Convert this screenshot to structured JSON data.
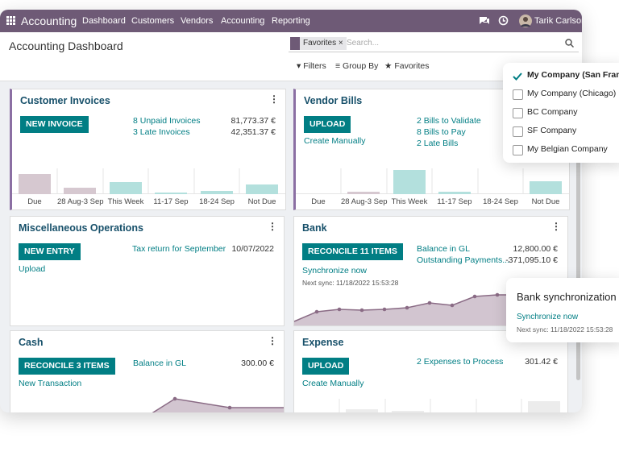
{
  "navbar": {
    "app": "Accounting",
    "menu": [
      "Dashboard",
      "Customers",
      "Vendors",
      "Accounting",
      "Reporting"
    ],
    "user": "Tarik Carlson"
  },
  "control_panel": {
    "title": "Accounting Dashboard",
    "facet": "Favorites",
    "search_placeholder": "Search...",
    "filters": "Filters",
    "group_by": "Group By",
    "favorites": "Favorites"
  },
  "cards": {
    "customer_invoices": {
      "title": "Customer Invoices",
      "button": "NEW INVOICE",
      "rows": [
        {
          "label": "8 Unpaid Invoices",
          "amount": "81,773.37 €"
        },
        {
          "label": "3 Late Invoices",
          "amount": "42,351.37 €"
        }
      ],
      "chart_labels": [
        "Due",
        "28 Aug-3 Sep",
        "This Week",
        "11-17 Sep",
        "18-24 Sep",
        "Not Due"
      ]
    },
    "vendor_bills": {
      "title": "Vendor Bills",
      "button": "UPLOAD",
      "secondary": "Create Manually",
      "rows": [
        "2 Bills to Validate",
        "8 Bills to Pay",
        "2 Late Bills"
      ],
      "chart_labels": [
        "Due",
        "28 Aug-3 Sep",
        "This Week",
        "11-17 Sep",
        "18-24 Sep",
        "Not Due"
      ]
    },
    "miscellaneous": {
      "title": "Miscellaneous Operations",
      "button": "NEW ENTRY",
      "secondary": "Upload",
      "item": "Tax return for September",
      "date": "10/07/2022"
    },
    "bank": {
      "title": "Bank",
      "button": "RECONCILE 11 ITEMS",
      "secondary": "Synchronize now",
      "next_sync": "Next sync: 11/18/2022 15:53:28",
      "rows": [
        {
          "label": "Balance in GL",
          "amount": "12,800.00 €"
        },
        {
          "label": "Outstanding Payments...",
          "amount": "-371,095.10 €"
        }
      ]
    },
    "cash": {
      "title": "Cash",
      "button": "RECONCILE 3 ITEMS",
      "secondary": "New Transaction",
      "rows": [
        {
          "label": "Balance in GL",
          "amount": "300.00 €"
        }
      ]
    },
    "expense": {
      "title": "Expense",
      "button": "UPLOAD",
      "secondary": "Create Manually",
      "rows": [
        {
          "label": "2 Expenses to Process",
          "amount": "301.42 €"
        }
      ]
    }
  },
  "company_switcher": {
    "companies": [
      "My Company (San Francisco)",
      "My Company (Chicago)",
      "BC Company",
      "SF Company",
      "My Belgian Company"
    ],
    "selected": 0
  },
  "bank_sync_popup": {
    "title": "Bank synchronization",
    "link": "Synchronize now",
    "next_sync": "Next sync: 11/18/2022 15:53:28"
  }
}
